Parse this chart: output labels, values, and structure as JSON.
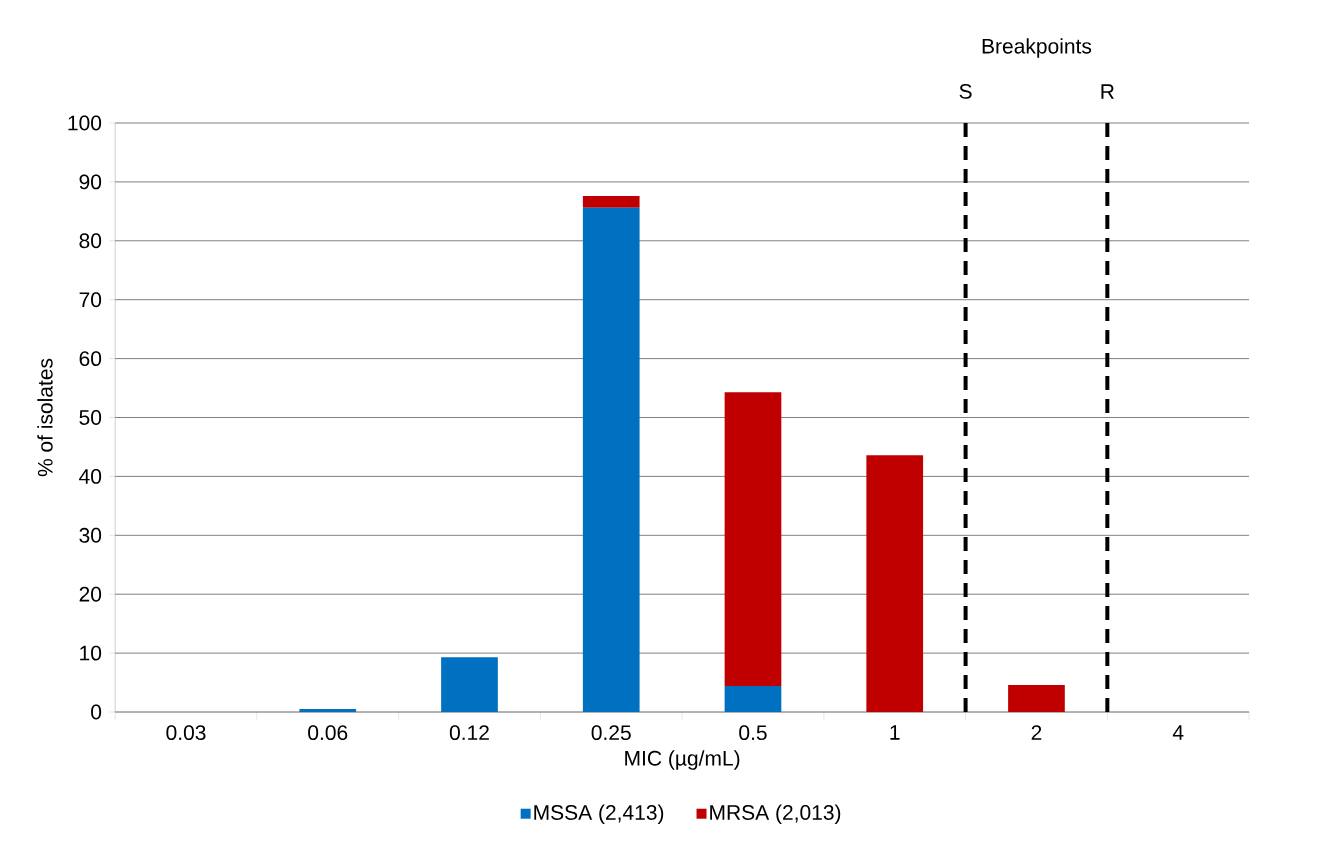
{
  "chart_data": {
    "type": "bar",
    "stacked": true,
    "categories": [
      "0.03",
      "0.06",
      "0.12",
      "0.25",
      "0.5",
      "1",
      "2",
      "4"
    ],
    "series": [
      {
        "name": "MSSA (2,413)",
        "color": "#0070c0",
        "values": [
          0,
          0.5,
          9.3,
          85.6,
          4.4,
          0,
          0,
          0
        ]
      },
      {
        "name": "MRSA (2,013)",
        "color": "#c00000",
        "values": [
          0,
          0,
          0,
          2.0,
          49.9,
          43.6,
          4.6,
          0
        ]
      }
    ],
    "xlabel": "MIC (µg/mL)",
    "ylabel": "% of isolates",
    "ylim": [
      0,
      100
    ],
    "yticks": [
      0,
      10,
      20,
      30,
      40,
      50,
      60,
      70,
      80,
      90,
      100
    ],
    "grid": "y",
    "legend": "bottom",
    "annotations": [
      "Breakpoints",
      "S",
      "R"
    ]
  }
}
